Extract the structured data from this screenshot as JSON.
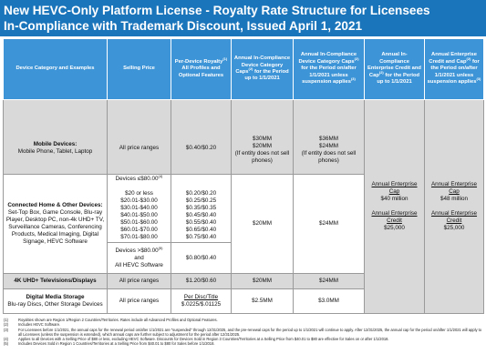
{
  "header": {
    "title_lines": [
      "New HEVC-Only Platform License - Royalty Rate Structure for Licensees",
      "In-Compliance with Trademark Discount, Issued April 1, 2021"
    ]
  },
  "table": {
    "headers": [
      [
        {
          "text": "Device Category and Examples"
        }
      ],
      [
        {
          "text": "Selling Price"
        }
      ],
      [
        {
          "text": "Per-Device Royalty"
        },
        {
          "text": "(1)",
          "sup": true
        },
        {
          "text": " All Profiles and Optional Features"
        }
      ],
      [
        {
          "text": "Annual In-Compliance Device Category Caps"
        },
        {
          "text": "(2)",
          "sup": true
        },
        {
          "text": " for the Period up to 1/1/2021"
        }
      ],
      [
        {
          "text": "Annual In-Compliance Device Category Caps"
        },
        {
          "text": "(2)",
          "sup": true
        },
        {
          "text": " for the Period on/after 1/1/2021 unless suspension applies"
        },
        {
          "text": "(3)",
          "sup": true
        }
      ],
      [
        {
          "text": "Annual In-Compliance Enterprise Credit and Cap"
        },
        {
          "text": "(2)",
          "sup": true
        },
        {
          "text": " for the Period up to 1/1/2021"
        }
      ],
      [
        {
          "text": "Annual Enterprise Credit and Cap"
        },
        {
          "text": "(2)",
          "sup": true
        },
        {
          "text": " for the Period on/after 1/1/2021 unless suspension applies"
        },
        {
          "text": "(3)",
          "sup": true
        }
      ]
    ],
    "mobile": {
      "category": "Mobile Devices:",
      "examples": "Mobile Phone, Tablet, Laptop",
      "price": "All price ranges",
      "royalty": "$0.40/$0.20",
      "caps_pre": [
        "$30MM",
        "$20MM",
        "(If entity does not sell phones)"
      ],
      "caps_post": [
        "$36MM",
        "$24MM",
        "(If entity does not sell phones)"
      ]
    },
    "connected": {
      "category": "Connected Home & Other Devices:",
      "examples": "Set-Top Box, Game Console, Blu-ray Player, Desktop PC, non-4k UHD+ TV, Surveillance Cameras, Conferencing Products, Medical Imaging, Digital Signage, HEVC Software",
      "low": {
        "head": "Devices ≤$80.00",
        "note": "(4)",
        "prices": [
          "$20 or less",
          "$20.01-$30.00",
          "$30.01-$40.00",
          "$40.01-$50.00",
          "$50.01-$60.00",
          "$60.01-$70.00",
          "$70.01-$80.00"
        ],
        "royalties": [
          "$0.20/$0.20",
          "$0.25/$0.25",
          "$0.35/$0.35",
          "$0.45/$0.40",
          "$0.55/$0.40",
          "$0.65/$0.40",
          "$0.75/$0.40"
        ]
      },
      "high": {
        "head": "Devices >$80.00",
        "note": "(5)",
        "rest": [
          "and",
          "All HEVC Software"
        ],
        "royalty": "$0.80/$0.40"
      },
      "caps_pre": "$20MM",
      "caps_post": "$24MM"
    },
    "uhd": {
      "category": "4K UHD+ Televisions/Displays",
      "price": "All price ranges",
      "royalty": "$1.20/$0.60",
      "caps_pre": "$20MM",
      "caps_post": "$24MM"
    },
    "storage": {
      "category": "Digital Media Storage",
      "examples": "Blu-ray Discs, Other Storage Devices",
      "price": "All price ranges",
      "royalty": [
        "Per Disc/Title",
        "$.0225/$.01125"
      ],
      "caps_pre": "$2.5MM",
      "caps_post": "$3.0MM"
    },
    "enterprise_pre": [
      "Annual Enterprise Cap",
      "$40 million",
      "Annual Enterprise Credit",
      "$25,000"
    ],
    "enterprise_post": [
      "Annual Enterprise Cap",
      "$48 million",
      "Annual Enterprise Credit",
      "$25,000"
    ]
  },
  "footnotes": [
    {
      "mark": "(1)",
      "text": "Royalties shown are Region 1/Region 2 Countries/Territories. Rates include all Advanced Profiles and Optional Features."
    },
    {
      "mark": "(2)",
      "text": "Includes HEVC Software."
    },
    {
      "mark": "(3)",
      "text": "For Licensees before 1/1/2021, the annual caps for the renewal period on/after 1/1/2021 are \"suspended\" through 12/31/2025, and the pre-renewal caps for the period up to 1/1/2021 will continue to apply. After 12/31/2025, the annual cap for the period on/after 1/1/2021 will apply to all Licensees (unless the suspension is extended), which annual caps are further subject to adjustment for the period after 12/31/2025."
    },
    {
      "mark": "(4)",
      "text": "Applies to all Devices with a Selling Price of $80 or less, excluding HEVC Software. Discounts for Devices Sold in Region 3 Countries/Territories at a Selling Price from $40.01 to $80 are effective for Sales on or after 1/1/2018."
    },
    {
      "mark": "(5)",
      "text": "Includes Devices Sold in Region 1 Countries/Territories at a Selling Price from $40.01 to $80 for Sales before 1/1/2018."
    }
  ]
}
